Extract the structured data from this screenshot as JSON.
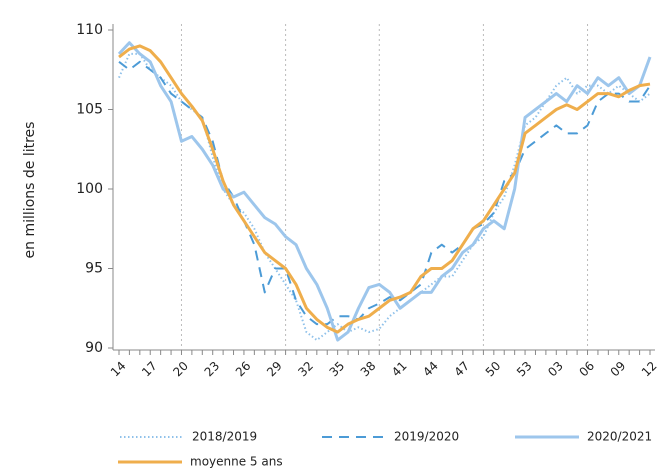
{
  "chart_data": {
    "type": "line",
    "y_label": "en millions de litres",
    "categories": [
      "14",
      null,
      null,
      "17",
      null,
      null,
      "20",
      null,
      null,
      "23",
      null,
      null,
      "26",
      null,
      null,
      "29",
      null,
      null,
      "32",
      null,
      null,
      "35",
      null,
      null,
      "38",
      null,
      null,
      "41",
      null,
      null,
      "44",
      null,
      null,
      "47",
      null,
      null,
      "50",
      null,
      null,
      "53",
      null,
      null,
      "03",
      null,
      null,
      "06",
      null,
      null,
      "09",
      null,
      null,
      "12"
    ],
    "ylim": [
      90,
      110
    ],
    "yticks": [
      90,
      95,
      100,
      105,
      110
    ],
    "xgrid": true,
    "series": [
      {
        "name": "2018/2019",
        "color": "#8fc1ea",
        "style": "dotted",
        "values": [
          107,
          108.5,
          108.5,
          107.5,
          107,
          106.5,
          105.5,
          105,
          104.5,
          102,
          100,
          99,
          98.5,
          97.5,
          96,
          95,
          94,
          93,
          91,
          90.5,
          91,
          91.5,
          91,
          91.3,
          91,
          91.2,
          92,
          92.5,
          93,
          93.5,
          94,
          94.5,
          94.5,
          95.5,
          96.5,
          97,
          98.5,
          99.5,
          101.5,
          104,
          104.5,
          105.5,
          106.5,
          107,
          106,
          106.5,
          106.5,
          106,
          106.5,
          106,
          105.5,
          106
        ]
      },
      {
        "name": "2019/2020",
        "color": "#4c9bd6",
        "style": "dashed",
        "values": [
          108,
          107.5,
          108,
          107.5,
          107,
          106,
          105.5,
          105,
          104.5,
          103,
          100.5,
          99.5,
          98,
          96.5,
          93.5,
          95,
          95,
          93,
          92,
          91.5,
          91.5,
          92,
          92,
          91.8,
          92.5,
          92.8,
          93.2,
          93,
          93.5,
          94,
          96,
          96.5,
          96,
          96.5,
          97.5,
          97.8,
          98.5,
          100.5,
          101,
          102.5,
          103,
          103.5,
          104,
          103.5,
          103.5,
          104,
          105.5,
          106,
          106,
          105.5,
          105.5,
          106.5
        ]
      },
      {
        "name": "2020/2021",
        "color": "#9dc6ec",
        "style": "solid",
        "values": [
          108.5,
          109.2,
          108.5,
          108,
          106.5,
          105.5,
          103,
          103.3,
          102.5,
          101.5,
          100,
          99.5,
          99.8,
          99,
          98.2,
          97.8,
          97,
          96.5,
          95,
          94,
          92.5,
          90.5,
          91,
          92.5,
          93.8,
          94,
          93.5,
          92.5,
          93,
          93.5,
          93.5,
          94.5,
          95,
          96,
          96.5,
          97.5,
          98,
          97.5,
          100,
          104.5,
          105,
          105.5,
          106,
          105.5,
          106.5,
          106,
          107,
          106.5,
          107,
          106,
          106.5,
          108.3
        ]
      },
      {
        "name": "moyenne 5 ans",
        "color": "#efae4c",
        "style": "solid",
        "values": [
          108.3,
          108.8,
          109,
          108.7,
          108,
          107,
          106,
          105.2,
          104.3,
          102.5,
          100.5,
          99,
          98,
          97,
          96,
          95.5,
          95,
          94,
          92.5,
          91.8,
          91.3,
          91,
          91.5,
          91.8,
          92,
          92.5,
          93,
          93.2,
          93.5,
          94.5,
          95,
          95,
          95.5,
          96.5,
          97.5,
          98,
          99,
          100,
          101,
          103.5,
          104,
          104.5,
          105,
          105.3,
          105,
          105.5,
          106,
          106,
          105.8,
          106.2,
          106.5,
          106.6
        ]
      }
    ]
  }
}
